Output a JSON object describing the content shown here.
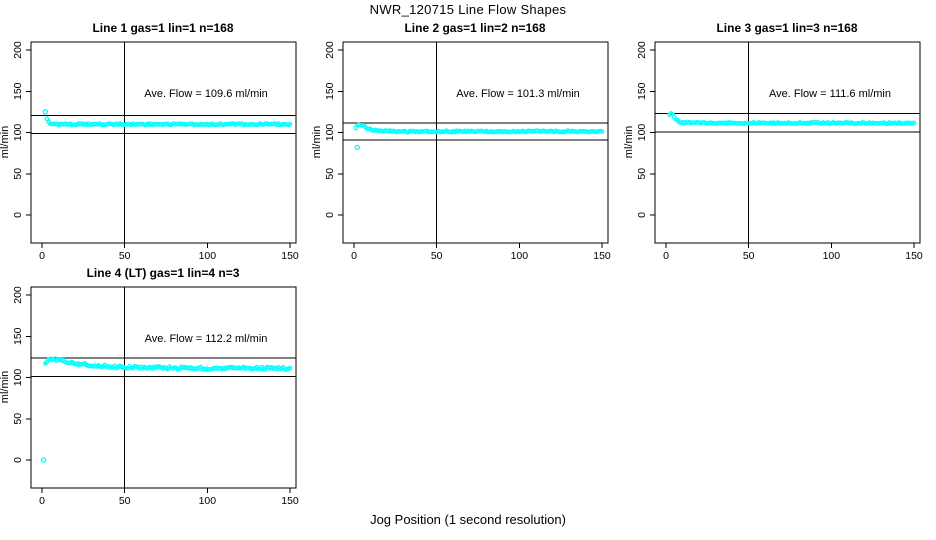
{
  "figure": {
    "title": "NWR_120715  Line Flow Shapes",
    "xlabel": "Jog Position (1 second resolution)"
  },
  "chart_data": {
    "type": "scatter",
    "layout": "grid-2-rows-3-cols, 4 panels used",
    "title": "NWR_120715  Line Flow Shapes",
    "xlabel": "Jog Position (1 second resolution)",
    "ylabel": "ml/min",
    "xlim": [
      0,
      150
    ],
    "ylim": [
      0,
      200
    ],
    "x_ticks": [
      0,
      50,
      100,
      150
    ],
    "y_ticks": [
      0,
      50,
      100,
      150,
      200
    ],
    "grid": false,
    "marker_color": "#00FFFF",
    "ref_line_color": "#000000",
    "vline_x": 50,
    "panels": [
      {
        "title": "Line 1 gas=1 lin=1 n=168",
        "gas": 1,
        "lin": 1,
        "n": 168,
        "ave_flow": 109.6,
        "ave_flow_label": "Ave. Flow =  109.6  ml/min",
        "hlines": [
          120.6,
          98.6
        ],
        "series": {
          "x_step": 1,
          "x_end": 150,
          "noise": 0.9,
          "keypoints": [
            [
              3,
              116.5
            ],
            [
              4,
              112.5
            ],
            [
              5,
              111
            ],
            [
              7,
              110.4
            ],
            [
              10,
              110
            ],
            [
              150,
              110
            ]
          ],
          "outliers": [
            [
              2,
              125
            ]
          ]
        }
      },
      {
        "title": "Line 2 gas=1 lin=2 n=168",
        "gas": 1,
        "lin": 2,
        "n": 168,
        "ave_flow": 101.3,
        "ave_flow_label": "Ave. Flow =  101.3  ml/min",
        "hlines": [
          111.4,
          91.2
        ],
        "series": {
          "x_step": 1,
          "x_end": 150,
          "noise": 0.9,
          "keypoints": [
            [
              1,
              106
            ],
            [
              2,
              109
            ],
            [
              3,
              110
            ],
            [
              5,
              109
            ],
            [
              7,
              106.5
            ],
            [
              9,
              104.5
            ],
            [
              12,
              102.5
            ],
            [
              16,
              101.8
            ],
            [
              25,
              101.3
            ],
            [
              150,
              101.3
            ]
          ],
          "outliers": [
            [
              2,
              82
            ]
          ]
        }
      },
      {
        "title": "Line 3 gas=1 lin=3 n=168",
        "gas": 1,
        "lin": 3,
        "n": 168,
        "ave_flow": 111.6,
        "ave_flow_label": "Ave. Flow =  111.6  ml/min",
        "hlines": [
          122.8,
          100.4
        ],
        "series": {
          "x_step": 1,
          "x_end": 150,
          "noise": 0.8,
          "keypoints": [
            [
              2,
              121
            ],
            [
              3,
              123
            ],
            [
              4,
              121.5
            ],
            [
              5,
              118.5
            ],
            [
              6,
              116
            ],
            [
              8,
              113
            ],
            [
              10,
              112
            ],
            [
              15,
              111.6
            ],
            [
              150,
              111.4
            ]
          ],
          "outliers": []
        }
      },
      {
        "title": "Line 4 (LT) gas=1 lin=4 n=3",
        "gas": 1,
        "lin": 4,
        "n": 3,
        "ave_flow": 112.2,
        "ave_flow_label": "Ave. Flow =  112.2  ml/min",
        "hlines": [
          123.4,
          101.0
        ],
        "series": {
          "x_step": 1,
          "x_end": 150,
          "noise": 1.6,
          "keypoints": [
            [
              2,
              118.5
            ],
            [
              3,
              120
            ],
            [
              5,
              121.8
            ],
            [
              7,
              122.3
            ],
            [
              9,
              122
            ],
            [
              12,
              120.5
            ],
            [
              15,
              119
            ],
            [
              20,
              117
            ],
            [
              25,
              115.7
            ],
            [
              30,
              114.7
            ],
            [
              40,
              113.2
            ],
            [
              50,
              112.6
            ],
            [
              60,
              112.1
            ],
            [
              80,
              111.6
            ],
            [
              100,
              111.3
            ],
            [
              150,
              111
            ]
          ],
          "outliers": [
            [
              1,
              0
            ]
          ]
        }
      }
    ]
  }
}
